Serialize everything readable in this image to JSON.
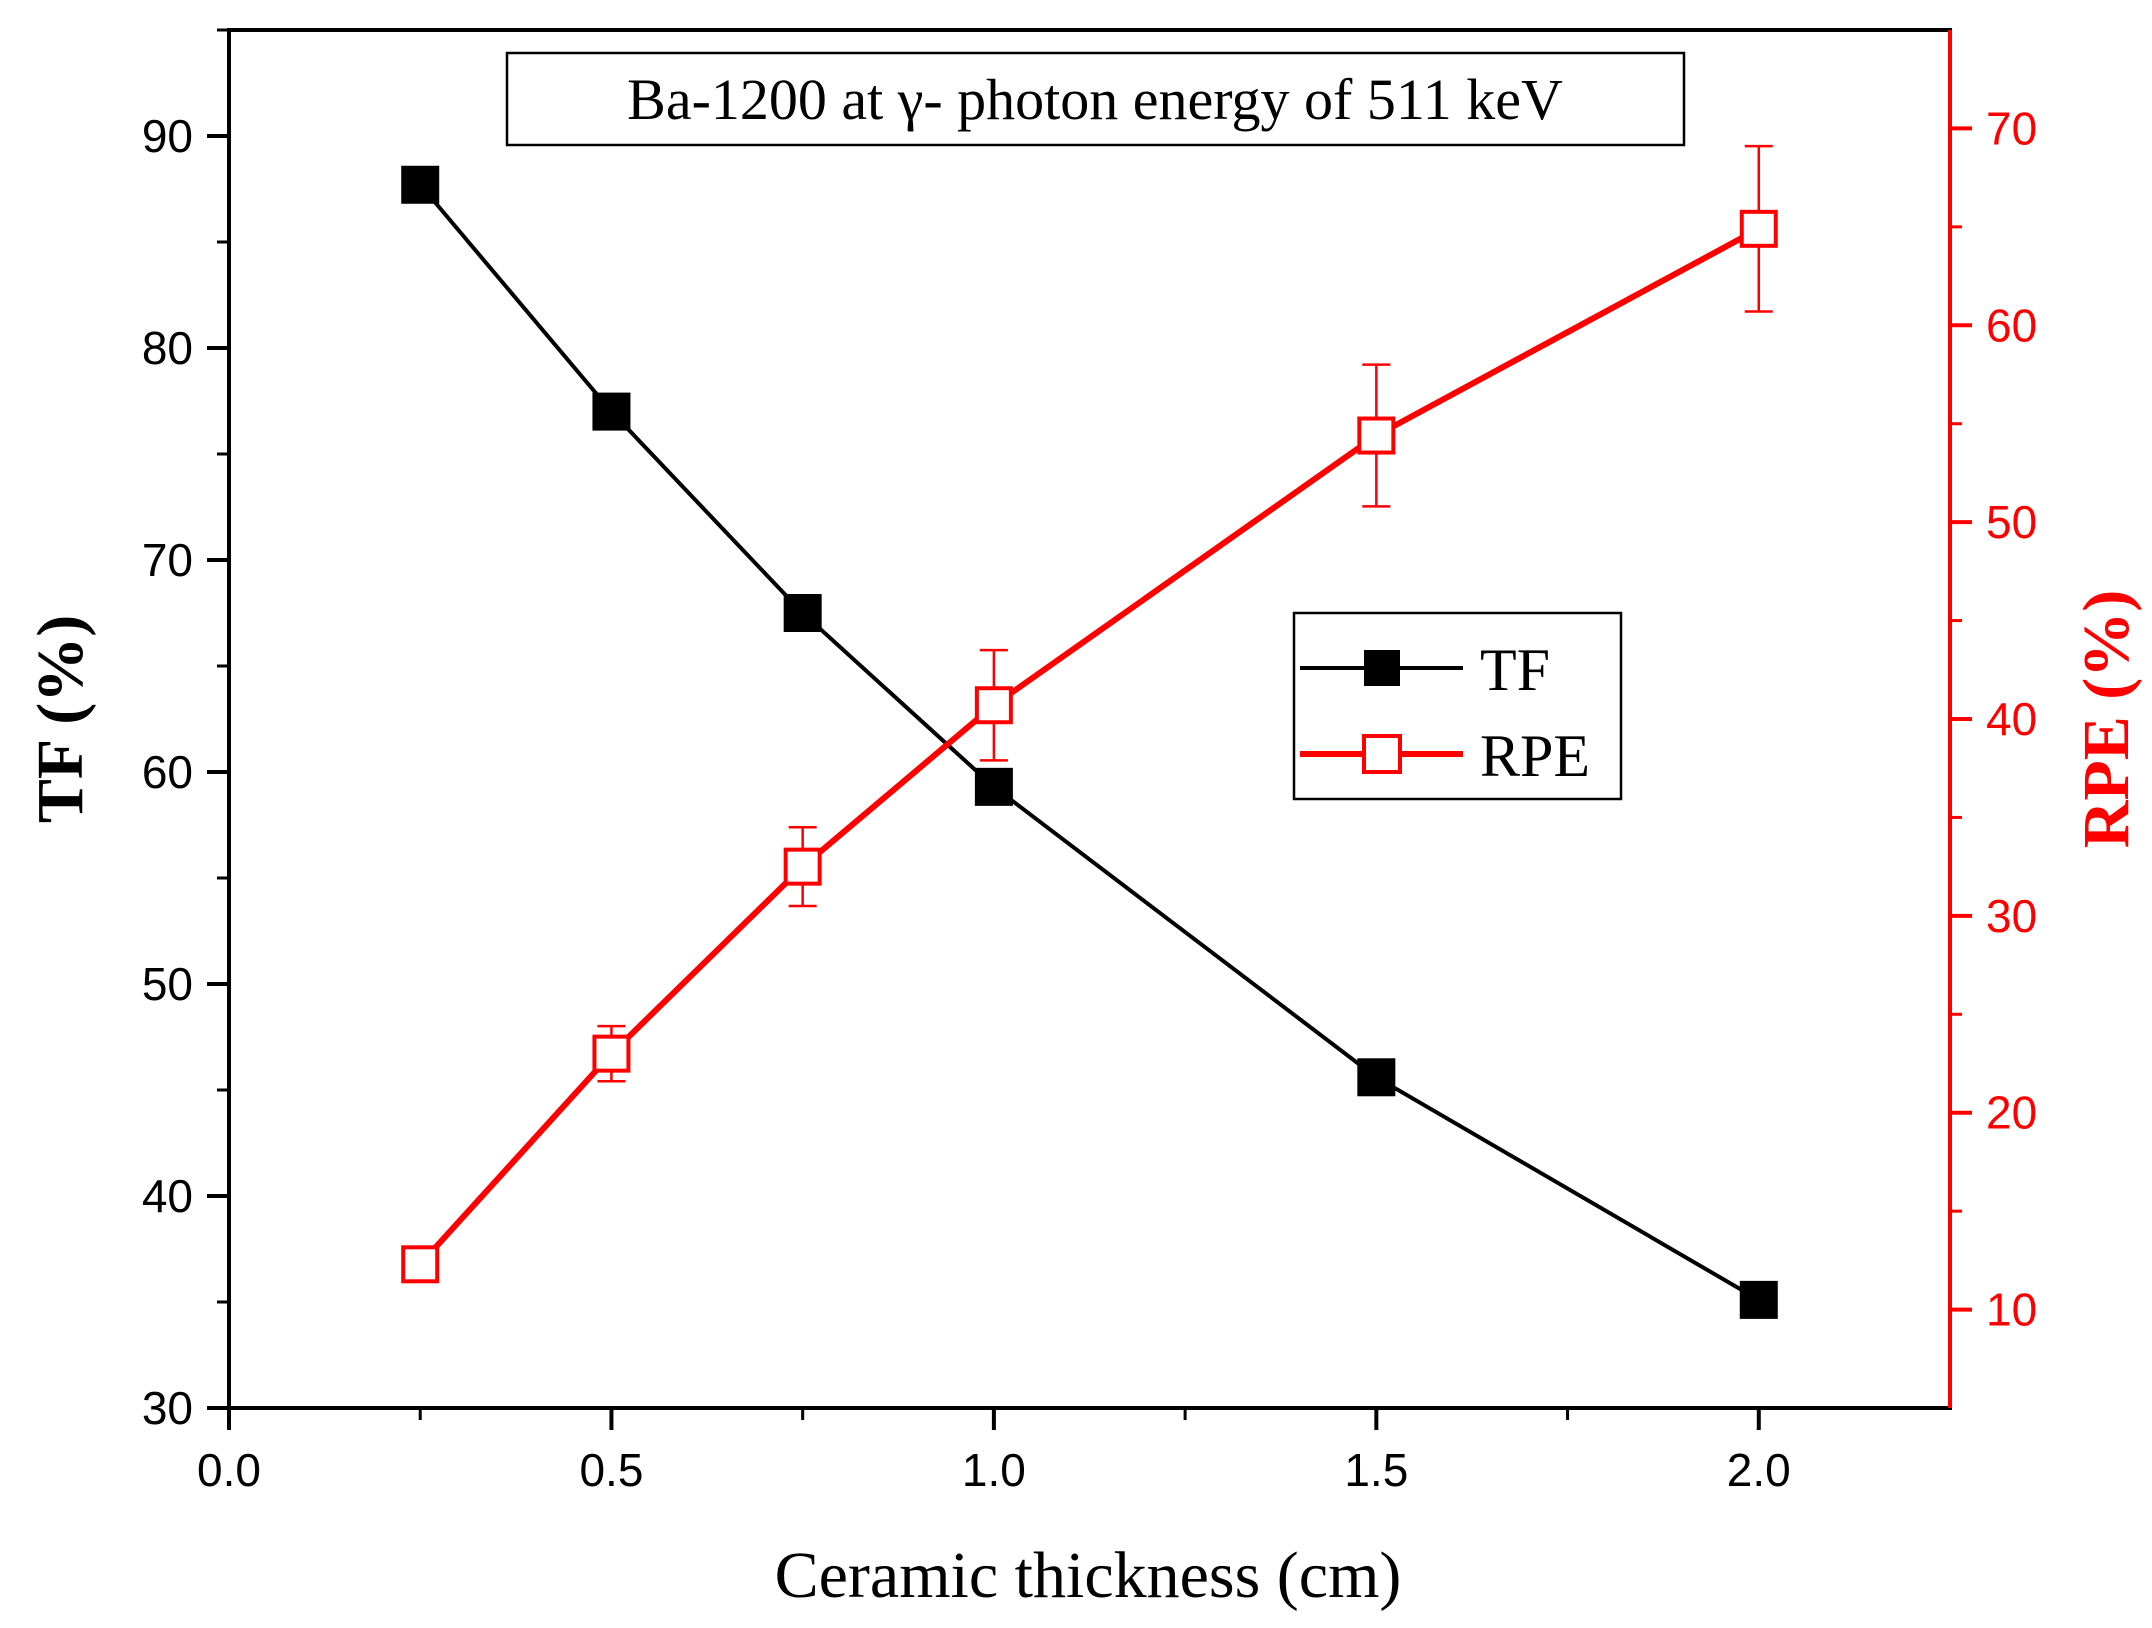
{
  "chart_data": {
    "type": "line",
    "title": "Ba-1200 at γ- photon energy of 511 keV",
    "xlabel": "Ceramic thickness (cm)",
    "ylabel_left": "TF (%)",
    "ylabel_right": "RPE (%)",
    "xlim": [
      0,
      2.25
    ],
    "ylim_left": [
      30,
      95
    ],
    "ylim_right": [
      5,
      75
    ],
    "x_ticks": [
      "0.0",
      "0.5",
      "1.0",
      "1.5",
      "2.0"
    ],
    "y_left_ticks": [
      "30",
      "40",
      "50",
      "60",
      "70",
      "80",
      "90"
    ],
    "y_right_ticks": [
      "10",
      "20",
      "30",
      "40",
      "50",
      "60",
      "70"
    ],
    "legend_position": "center-right",
    "colors": {
      "tf": "#000000",
      "rpe": "#ff0000"
    },
    "series": [
      {
        "name": "TF",
        "axis": "left",
        "marker": "filled-square",
        "x": [
          0.25,
          0.5,
          0.75,
          1.0,
          1.5,
          2.0
        ],
        "values": [
          87.7,
          77.0,
          67.5,
          59.3,
          45.6,
          35.1
        ]
      },
      {
        "name": "RPE",
        "axis": "right",
        "marker": "open-square",
        "x": [
          0.25,
          0.5,
          0.75,
          1.0,
          1.5,
          2.0
        ],
        "values": [
          12.3,
          23.0,
          32.5,
          40.7,
          54.4,
          64.9
        ],
        "errors": [
          0.4,
          1.4,
          2.0,
          2.8,
          3.6,
          4.2
        ]
      }
    ]
  }
}
